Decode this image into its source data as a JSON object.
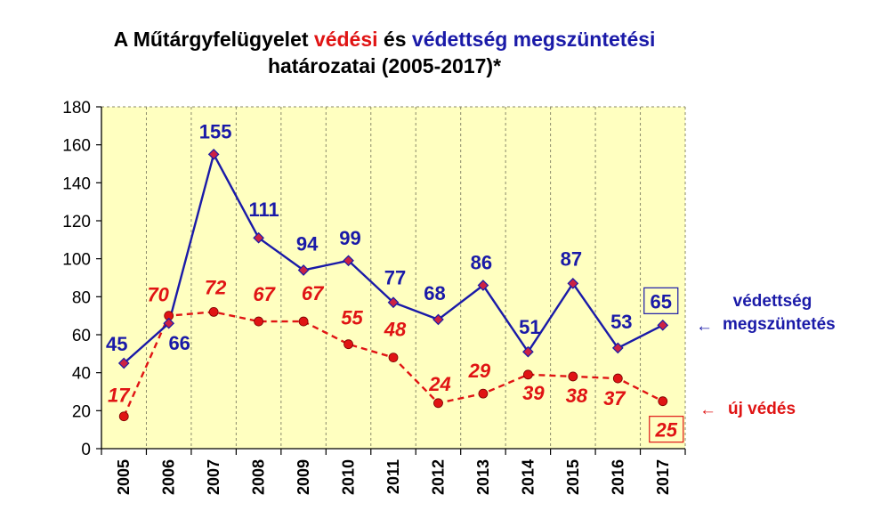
{
  "title": {
    "line1_a": "A Műtárgyfelügyelet ",
    "line1_b": "védési",
    "line1_c": " és ",
    "line1_d": "védettség megszüntetési",
    "line2": "határozatai (2005-2017)*"
  },
  "colors": {
    "plot_bg": "#ffffc0",
    "blue": "#1a1aa8",
    "red": "#e01414",
    "marker_blue": "#cc2244"
  },
  "chart_data": {
    "type": "line",
    "categories": [
      "2005",
      "2006",
      "2007",
      "2008",
      "2009",
      "2010",
      "2011",
      "2012",
      "2013",
      "2014",
      "2015",
      "2016",
      "2017"
    ],
    "series": [
      {
        "name": "védettség megszüntetés",
        "style": "solid",
        "values": [
          45,
          66,
          155,
          111,
          94,
          99,
          77,
          68,
          86,
          51,
          87,
          53,
          65
        ]
      },
      {
        "name": "új védés",
        "style": "dashed",
        "values": [
          17,
          70,
          72,
          67,
          67,
          55,
          48,
          24,
          29,
          39,
          38,
          37,
          25
        ]
      }
    ],
    "ylim": [
      0,
      180
    ],
    "yticks": [
      "0",
      "20",
      "40",
      "60",
      "80",
      "100",
      "120",
      "140",
      "160",
      "180"
    ],
    "grid": "vertical dashed lines between categories",
    "legend": {
      "blue_line1": "védettség",
      "blue_line2": "megszüntetés",
      "red": "új védés",
      "arrow": "←"
    },
    "boxed_last_labels": true
  }
}
